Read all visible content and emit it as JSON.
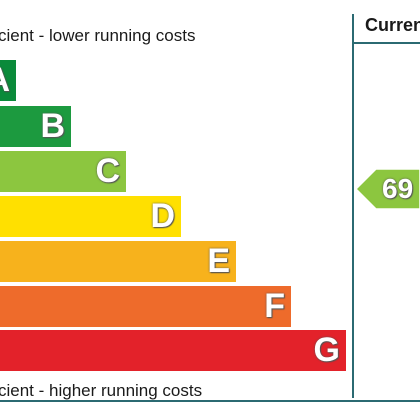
{
  "header": {
    "current_label": "Curren"
  },
  "captions": {
    "top": "cient - lower running costs",
    "bottom": "cient - higher running costs"
  },
  "bands": [
    {
      "letter": "A",
      "color": "#0a8a3a"
    },
    {
      "letter": "B",
      "color": "#1c9a3f"
    },
    {
      "letter": "C",
      "color": "#8cc63f"
    },
    {
      "letter": "D",
      "color": "#ffe000"
    },
    {
      "letter": "E",
      "color": "#f7b21c"
    },
    {
      "letter": "F",
      "color": "#ee6b2b"
    },
    {
      "letter": "G",
      "color": "#e3222a"
    }
  ],
  "current_rating": {
    "value": "69",
    "color": "#8cc63f"
  }
}
